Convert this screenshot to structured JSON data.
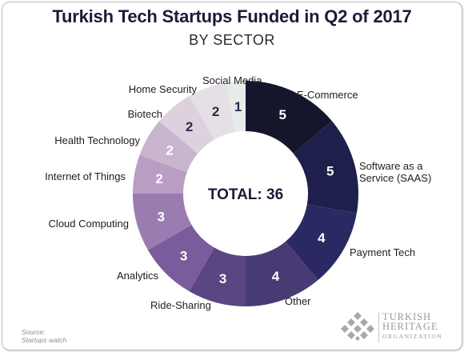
{
  "chart_data": {
    "type": "pie",
    "variant": "donut",
    "title": "Turkish Tech Startups Funded in Q2 of 2017",
    "subtitle": "BY SECTOR",
    "center_label": "TOTAL: 36",
    "slices": [
      {
        "label": "E-Commerce",
        "value": 5,
        "color": "#15152b"
      },
      {
        "label": "Software as a Service (SAAS)",
        "value": 5,
        "color": "#1e1f4a"
      },
      {
        "label": "Payment Tech",
        "value": 4,
        "color": "#2b2963"
      },
      {
        "label": "Other",
        "value": 4,
        "color": "#483b74"
      },
      {
        "label": "Ride-Sharing",
        "value": 3,
        "color": "#5a4682"
      },
      {
        "label": "Analytics",
        "value": 3,
        "color": "#7a5b9b"
      },
      {
        "label": "Cloud Computing",
        "value": 3,
        "color": "#9b7cb1"
      },
      {
        "label": "Internet of Things",
        "value": 2,
        "color": "#b99dc3"
      },
      {
        "label": "Health Technology",
        "value": 2,
        "color": "#cab5cf"
      },
      {
        "label": "Biotech",
        "value": 2,
        "color": "#ddd1de"
      },
      {
        "label": "Home Security",
        "value": 2,
        "color": "#e5dfe6"
      },
      {
        "label": "Social Media",
        "value": 1,
        "color": "#e6ecea"
      }
    ]
  },
  "source": {
    "line1": "Source:",
    "line2": "Startups watch"
  },
  "logo": {
    "line1": "TURKISH",
    "line2": "HERITAGE",
    "line3": "ORGANIZATION"
  }
}
